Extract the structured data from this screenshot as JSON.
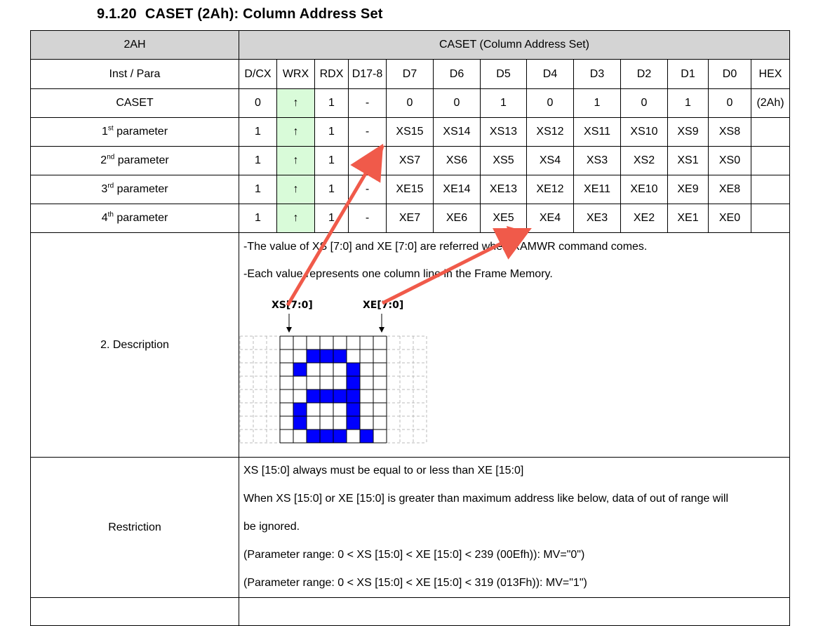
{
  "heading": {
    "number": "9.1.20",
    "title": "CASET (2Ah): Column Address Set"
  },
  "header_row": {
    "code": "2AH",
    "name": "CASET (Column Address Set)"
  },
  "columns_row": [
    "Inst / Para",
    "D/CX",
    "WRX",
    "RDX",
    "D17-8",
    "D7",
    "D6",
    "D5",
    "D4",
    "D3",
    "D2",
    "D1",
    "D0",
    "HEX"
  ],
  "rows": [
    {
      "label": "CASET",
      "sup": "",
      "suffix": "",
      "dcx": "0",
      "wrx": "↑",
      "rdx": "1",
      "d178": "-",
      "bits": [
        "0",
        "0",
        "1",
        "0",
        "1",
        "0",
        "1",
        "0"
      ],
      "hex": "(2Ah)"
    },
    {
      "label": "1",
      "sup": "st",
      "suffix": " parameter",
      "dcx": "1",
      "wrx": "↑",
      "rdx": "1",
      "d178": "-",
      "bits": [
        "XS15",
        "XS14",
        "XS13",
        "XS12",
        "XS11",
        "XS10",
        "XS9",
        "XS8"
      ],
      "hex": ""
    },
    {
      "label": "2",
      "sup": "nd",
      "suffix": " parameter",
      "dcx": "1",
      "wrx": "↑",
      "rdx": "1",
      "d178": "-",
      "bits": [
        "XS7",
        "XS6",
        "XS5",
        "XS4",
        "XS3",
        "XS2",
        "XS1",
        "XS0"
      ],
      "hex": ""
    },
    {
      "label": "3",
      "sup": "rd",
      "suffix": " parameter",
      "dcx": "1",
      "wrx": "↑",
      "rdx": "1",
      "d178": "-",
      "bits": [
        "XE15",
        "XE14",
        "XE13",
        "XE12",
        "XE11",
        "XE10",
        "XE9",
        "XE8"
      ],
      "hex": ""
    },
    {
      "label": "4",
      "sup": "th",
      "suffix": " parameter",
      "dcx": "1",
      "wrx": "↑",
      "rdx": "1",
      "d178": "-",
      "bits": [
        "XE7",
        "XE6",
        "XE5",
        "XE4",
        "XE3",
        "XE2",
        "XE1",
        "XE0"
      ],
      "hex": ""
    }
  ],
  "description": {
    "label": "2.    Description",
    "line1": "-The value of XS [7:0] and XE [7:0] are referred when RAMWR command comes.",
    "line2": "-Each value represents one column line in the Frame Memory.",
    "xs_label": "XS[7:0]",
    "xe_label": "XE[7:0]",
    "pixel_pattern": [
      "00000000",
      "00111000",
      "01000100",
      "00000100",
      "00111100",
      "01000100",
      "01000100",
      "00111010"
    ],
    "pixel_color": "#0000ff"
  },
  "restriction": {
    "label": "Restriction",
    "lines": [
      "XS [15:0] always must be equal to or less than XE [15:0]",
      "When XS [15:0] or XE [15:0] is greater than maximum address like below, data of out of range will",
      "be ignored.",
      "(Parameter range: 0 < XS [15:0] < XE [15:0] < 239 (00Efh)): MV=\"0\")",
      "(Parameter range: 0 < XS [15:0] < XE [15:0] < 319 (013Fh)): MV=\"1\")"
    ]
  },
  "colors": {
    "header_bg": "#d4d4d4",
    "wrx_bg": "#d9fbd9",
    "arrow": "#f05a4a"
  }
}
